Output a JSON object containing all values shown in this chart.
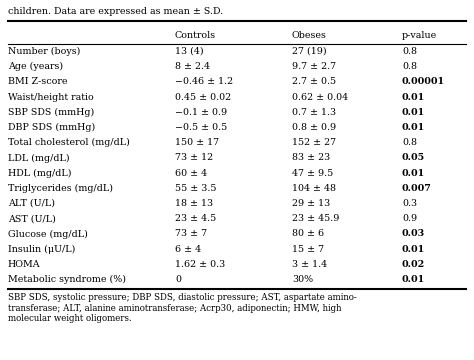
{
  "header_top": "children. Data are expressed as mean ± S.D.",
  "columns": [
    "",
    "Controls",
    "Obeses",
    "p-value"
  ],
  "rows": [
    [
      "Number (boys)",
      "13 (4)",
      "27 (19)",
      "0.8"
    ],
    [
      "Age (years)",
      "8 ± 2.4",
      "9.7 ± 2.7",
      "0.8"
    ],
    [
      "BMI Z-score",
      "−0.46 ± 1.2",
      "2.7 ± 0.5",
      "0.00001"
    ],
    [
      "Waist/height ratio",
      "0.45 ± 0.02",
      "0.62 ± 0.04",
      "0.01"
    ],
    [
      "SBP SDS (mmHg)",
      "−0.1 ± 0.9",
      "0.7 ± 1.3",
      "0.01"
    ],
    [
      "DBP SDS (mmHg)",
      "−0.5 ± 0.5",
      "0.8 ± 0.9",
      "0.01"
    ],
    [
      "Total cholesterol (mg/dL)",
      "150 ± 17",
      "152 ± 27",
      "0.8"
    ],
    [
      "LDL (mg/dL)",
      "73 ± 12",
      "83 ± 23",
      "0.05"
    ],
    [
      "HDL (mg/dL)",
      "60 ± 4",
      "47 ± 9.5",
      "0.01"
    ],
    [
      "Triglycerides (mg/dL)",
      "55 ± 3.5",
      "104 ± 48",
      "0.007"
    ],
    [
      "ALT (U/L)",
      "18 ± 13",
      "29 ± 13",
      "0.3"
    ],
    [
      "AST (U/L)",
      "23 ± 4.5",
      "23 ± 45.9",
      "0.9"
    ],
    [
      "Glucose (mg/dL)",
      "73 ± 7",
      "80 ± 6",
      "0.03"
    ],
    [
      "Insulin (μU/L)",
      "6 ± 4",
      "15 ± 7",
      "0.01"
    ],
    [
      "HOMA",
      "1.62 ± 0.3",
      "3 ± 1.4",
      "0.02"
    ],
    [
      "Metabolic syndrome (%)",
      "0",
      "30%",
      "0.01"
    ]
  ],
  "bold_pvalues": [
    "0.00001",
    "0.01",
    "0.05",
    "0.007",
    "0.03",
    "0.02"
  ],
  "footer_lines": [
    "SBP SDS, systolic pressure; DBP SDS, diastolic pressure; AST, aspartate amino-",
    "transferase; ALT, alanine aminotransferase; Acrp30, adiponectin; HMW, high",
    "molecular weight oligomers."
  ],
  "background_color": "#ffffff",
  "text_color": "#000000",
  "font_size": 6.8,
  "header_font_size": 6.8,
  "footer_font_size": 6.2,
  "caption_font_size": 6.8
}
